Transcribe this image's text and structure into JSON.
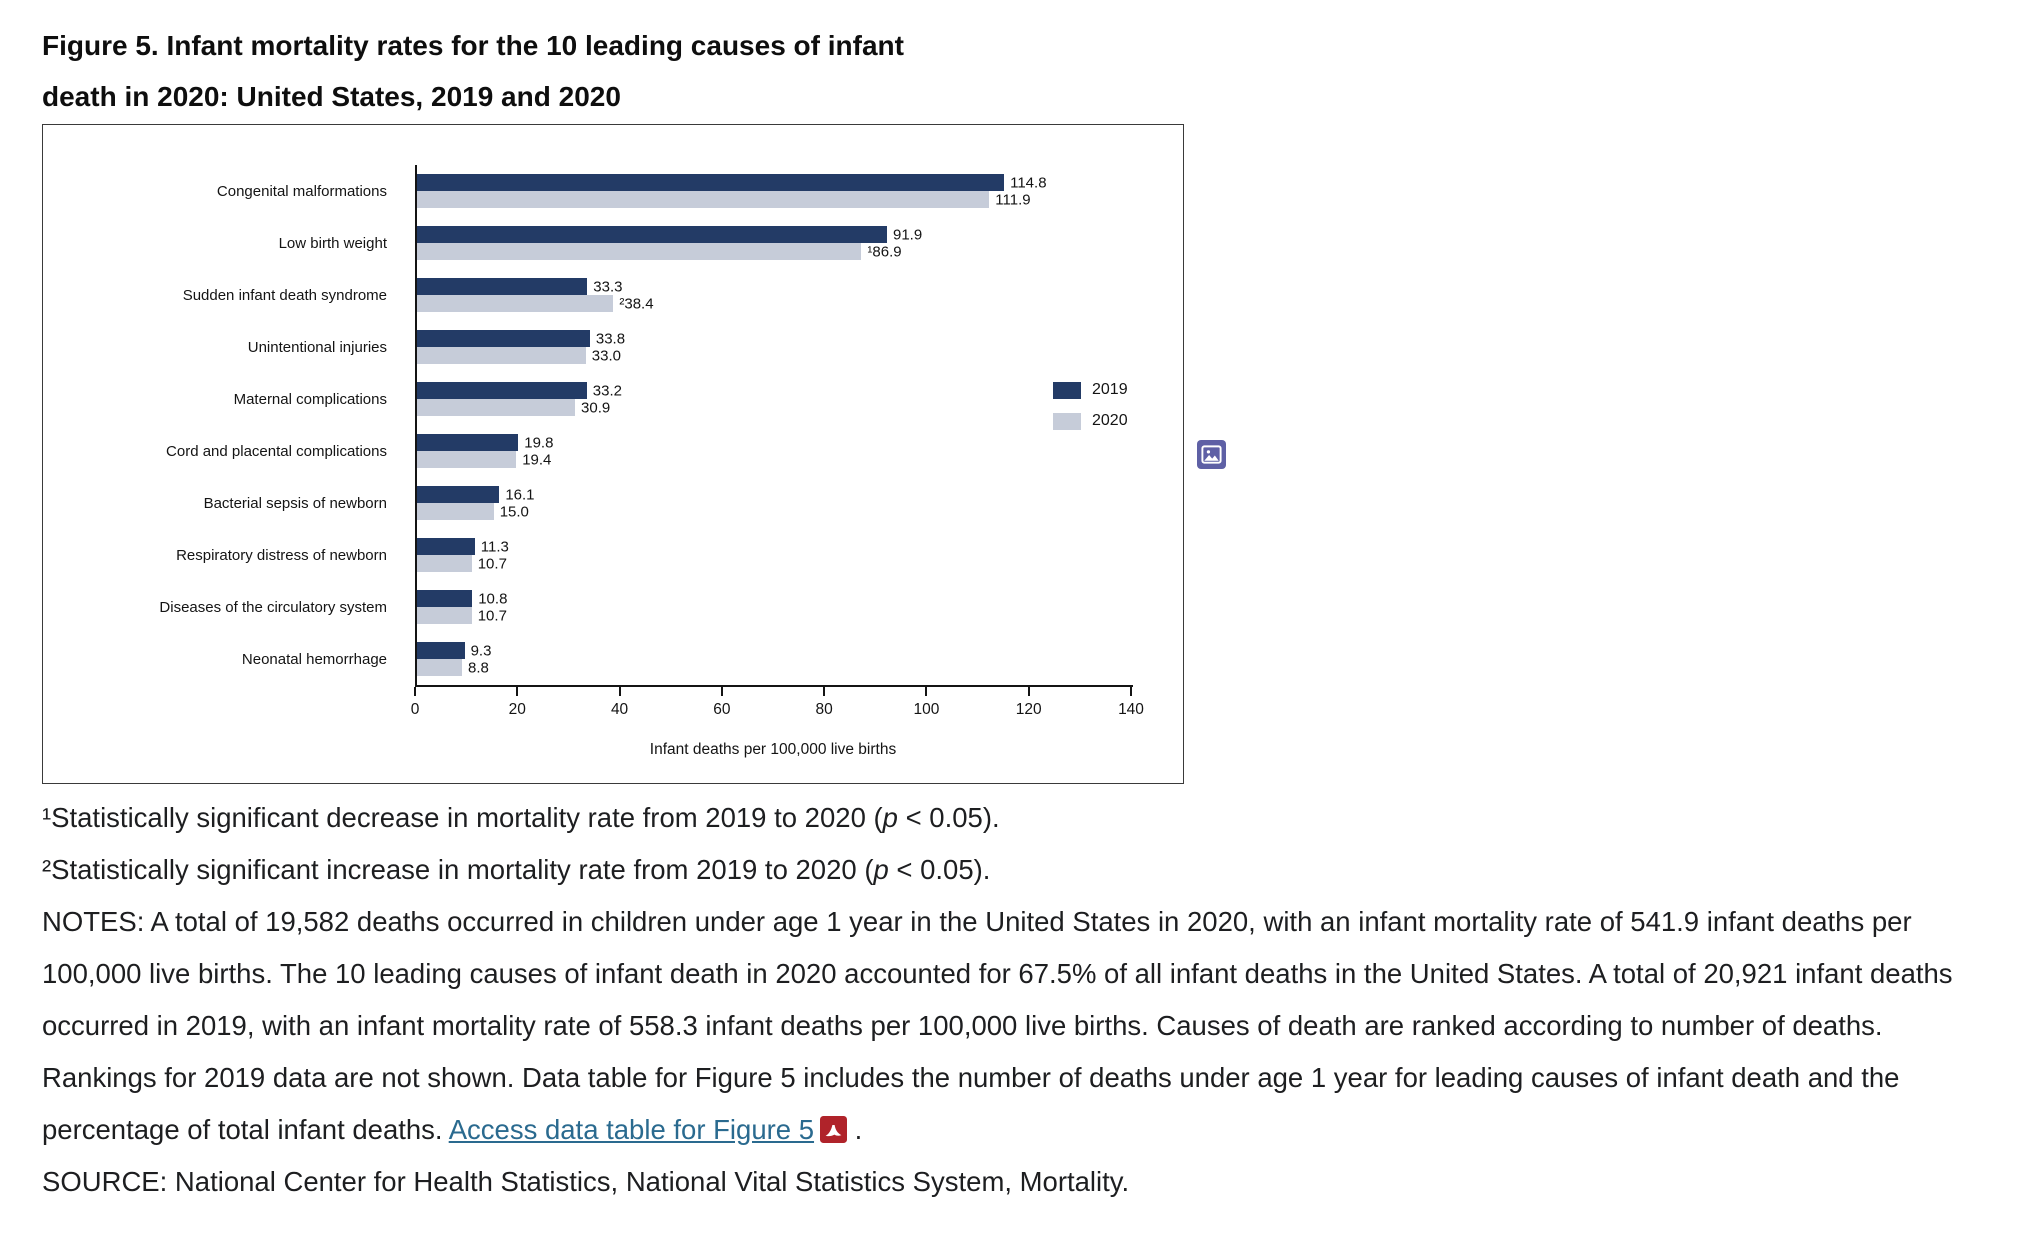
{
  "title": {
    "line1": "Figure 5. Infant mortality rates for the 10 leading causes of infant",
    "line2": "death in 2020: United States, 2019 and 2020"
  },
  "chart_data": {
    "type": "bar",
    "orientation": "horizontal",
    "title": "Figure 5. Infant mortality rates for the 10 leading causes of infant death in 2020: United States, 2019 and 2020",
    "categories": [
      "Congenital malformations",
      "Low birth weight",
      "Sudden infant death syndrome",
      "Unintentional injuries",
      "Maternal complications",
      "Cord and placental complications",
      "Bacterial sepsis of newborn",
      "Respiratory distress of newborn",
      "Diseases of the circulatory system",
      "Neonatal hemorrhage"
    ],
    "series": [
      {
        "name": "2019",
        "color": "#233b66",
        "values": [
          114.8,
          91.9,
          33.3,
          33.8,
          33.2,
          19.8,
          16.1,
          11.3,
          10.8,
          9.3
        ],
        "labels": [
          "114.8",
          "91.9",
          "33.3",
          "33.8",
          "33.2",
          "19.8",
          "16.1",
          "11.3",
          "10.8",
          "9.3"
        ]
      },
      {
        "name": "2020",
        "color": "#c6ccd9",
        "values": [
          111.9,
          86.9,
          38.4,
          33.0,
          30.9,
          19.4,
          15.0,
          10.7,
          10.7,
          8.8
        ],
        "labels": [
          "111.9",
          "¹86.9",
          "²38.4",
          "33.0",
          "30.9",
          "19.4",
          "15.0",
          "10.7",
          "10.7",
          "8.8"
        ]
      }
    ],
    "xlabel": "Infant deaths per 100,000 live births",
    "xlim": [
      0,
      140
    ],
    "xticks": [
      0,
      20,
      40,
      60,
      80,
      100,
      120,
      140
    ],
    "legend_position": "right",
    "grid": false
  },
  "footnote1": {
    "pre": "¹Statistically significant decrease in mortality rate from 2019 to 2020 (",
    "p": "p",
    "post": " < 0.05)."
  },
  "footnote2": {
    "pre": "²Statistically significant increase in mortality rate from 2019 to 2020 (",
    "p": "p",
    "post": " < 0.05)."
  },
  "notes": {
    "body": "NOTES: A total of 19,582 deaths occurred in children under age 1 year in the United States in 2020, with an infant mortality rate of 541.9 infant deaths per 100,000 live births. The 10 leading causes of infant death in 2020 accounted for 67.5% of all infant deaths in the United States. A total of 20,921 infant deaths occurred in 2019, with an infant mortality rate of 558.3 infant deaths per 100,000 live births. Causes of death are ranked according to number of deaths. Rankings for 2019 data are not shown. Data table for Figure 5 includes the number of deaths under age 1 year for leading causes of infant death and the percentage of total infant deaths. ",
    "link_text": "Access data table for Figure 5",
    "after_link": " .",
    "source": "SOURCE: National Center for Health Statistics, National Vital Statistics System, Mortality."
  },
  "icons": {
    "image_icon": "image-icon",
    "pdf_icon": "pdf-icon"
  },
  "colors": {
    "bar_2019": "#233b66",
    "bar_2020": "#c6ccd9",
    "link": "#2a6a8f",
    "pdf_red": "#b0232a",
    "image_icon_purple": "#5e60a5",
    "axis": "#141414"
  }
}
